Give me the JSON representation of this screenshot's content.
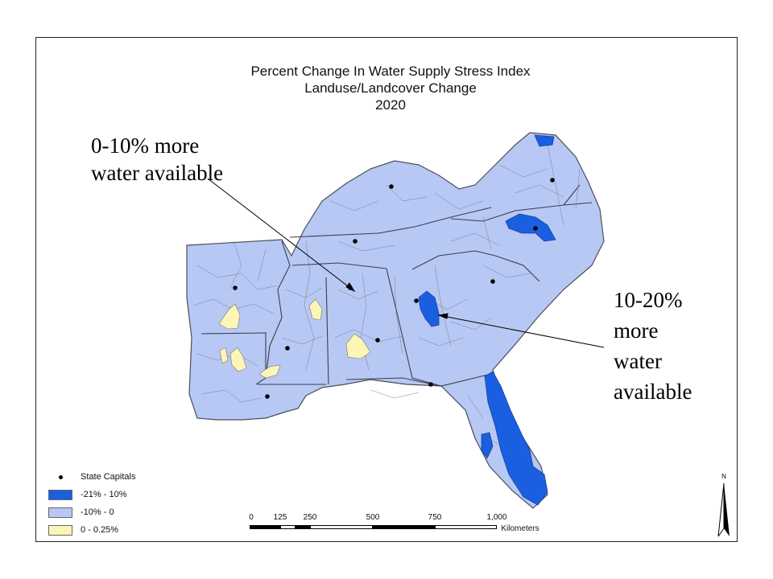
{
  "title": {
    "line1": "Percent Change In Water Supply Stress Index",
    "line2": "Landuse/Landcover Change",
    "line3": "2020"
  },
  "annotations": {
    "left": [
      "0-10% more",
      "water available"
    ],
    "right": [
      "10-20%",
      "more",
      "water",
      "available"
    ]
  },
  "legend": {
    "capitals_label": "State Capitals",
    "items": [
      {
        "label": "-21% - 10%",
        "color": "#1a5fe0"
      },
      {
        "label": "-10% - 0",
        "color": "#b8c8f4"
      },
      {
        "label": "0 - 0.25%",
        "color": "#fbf6b6"
      }
    ]
  },
  "scale": {
    "ticks": [
      "0",
      "125",
      "250",
      "500",
      "750",
      "1,000"
    ],
    "unit": "Kilometers"
  },
  "north": {
    "label": "N"
  },
  "colors": {
    "base": "#b8c8f4",
    "high": "#1a5fe0",
    "low": "#fbf6b6",
    "stroke": "#666a78"
  }
}
